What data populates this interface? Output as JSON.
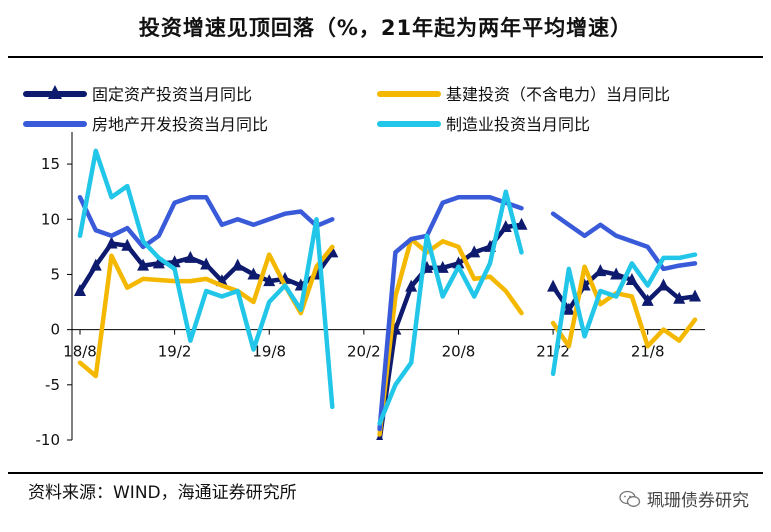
{
  "title": "投资增速见顶回落（%，21年起为两年平均增速）",
  "source": "资料来源：WIND，海通证券研究所",
  "watermark": "珮珊债券研究",
  "chart_data": {
    "type": "line",
    "title": "投资增速见顶回落（%，21年起为两年平均增速）",
    "xlabel": "",
    "ylabel": "",
    "ylim": [
      -10,
      17
    ],
    "yticks": [
      15,
      10,
      5,
      0,
      -5,
      -10
    ],
    "x": [
      "18/8",
      "18/9",
      "18/10",
      "18/11",
      "18/12",
      "19/1",
      "19/2",
      "19/3",
      "19/4",
      "19/5",
      "19/6",
      "19/7",
      "19/8",
      "19/9",
      "19/10",
      "19/11",
      "19/12",
      "20/1",
      "20/2",
      "20/3",
      "20/4",
      "20/5",
      "20/6",
      "20/7",
      "20/8",
      "20/9",
      "20/10",
      "20/11",
      "20/12",
      "21/1",
      "21/2",
      "21/3",
      "21/4",
      "21/5",
      "21/6",
      "21/7",
      "21/8",
      "21/9",
      "21/10",
      "21/11"
    ],
    "xtick_labels": [
      "18/8",
      "19/2",
      "19/8",
      "20/2",
      "20/8",
      "21/2",
      "21/8"
    ],
    "legend": [
      "固定资产投资当月同比",
      "基建投资（不含电力）当月同比",
      "房地产开发投资当月同比",
      "制造业投资当月同比"
    ],
    "series": [
      {
        "name": "固定资产投资当月同比",
        "color": "#0d1a6e",
        "marker": "triangle",
        "values": [
          3.5,
          5.8,
          7.8,
          7.6,
          5.8,
          6.0,
          6.1,
          6.5,
          5.9,
          4.4,
          5.8,
          5.0,
          4.4,
          4.6,
          4.0,
          5.0,
          7.0,
          null,
          null,
          -10.0,
          0.0,
          3.9,
          5.6,
          5.6,
          6.0,
          7.0,
          7.5,
          9.3,
          9.5,
          null,
          3.9,
          1.8,
          4.0,
          5.3,
          5.0,
          4.5,
          2.6,
          4.0,
          2.8,
          3.0
        ]
      },
      {
        "name": "基建投资（不含电力）当月同比",
        "color": "#f5b800",
        "values": [
          -3.0,
          -4.2,
          6.7,
          3.8,
          4.6,
          4.5,
          4.4,
          4.4,
          4.6,
          4.0,
          3.5,
          2.5,
          6.8,
          4.0,
          1.5,
          5.7,
          7.5,
          null,
          null,
          -9.5,
          3.0,
          8.2,
          7.0,
          8.0,
          7.5,
          4.6,
          4.8,
          3.5,
          1.5,
          null,
          0.6,
          -1.5,
          5.7,
          2.3,
          3.3,
          3.0,
          -1.5,
          0.0,
          -1.0,
          0.9
        ]
      },
      {
        "name": "房地产开发投资当月同比",
        "color": "#3a5bd9",
        "values": [
          12.0,
          9.0,
          8.5,
          9.2,
          7.5,
          8.5,
          11.5,
          12.0,
          12.0,
          9.5,
          10.0,
          9.5,
          10.0,
          10.5,
          10.7,
          9.4,
          10.0,
          null,
          null,
          -9.0,
          7.0,
          8.2,
          8.5,
          11.5,
          12.0,
          12.0,
          12.0,
          11.5,
          11.0,
          null,
          10.5,
          9.5,
          8.5,
          9.5,
          8.5,
          8.0,
          7.5,
          5.5,
          5.8,
          6.0
        ]
      },
      {
        "name": "制造业投资当月同比",
        "color": "#22c6e8",
        "values": [
          8.5,
          16.2,
          12.0,
          13.0,
          8.0,
          6.5,
          5.5,
          -1.0,
          3.5,
          3.0,
          3.5,
          -1.8,
          2.5,
          4.0,
          1.8,
          10.0,
          -7.0,
          null,
          null,
          -8.5,
          -5.0,
          -3.0,
          8.5,
          3.0,
          5.7,
          3.0,
          6.0,
          12.5,
          7.0,
          null,
          -4.0,
          5.5,
          -0.6,
          3.5,
          3.0,
          6.0,
          4.0,
          6.5,
          6.5,
          6.8
        ]
      }
    ]
  }
}
